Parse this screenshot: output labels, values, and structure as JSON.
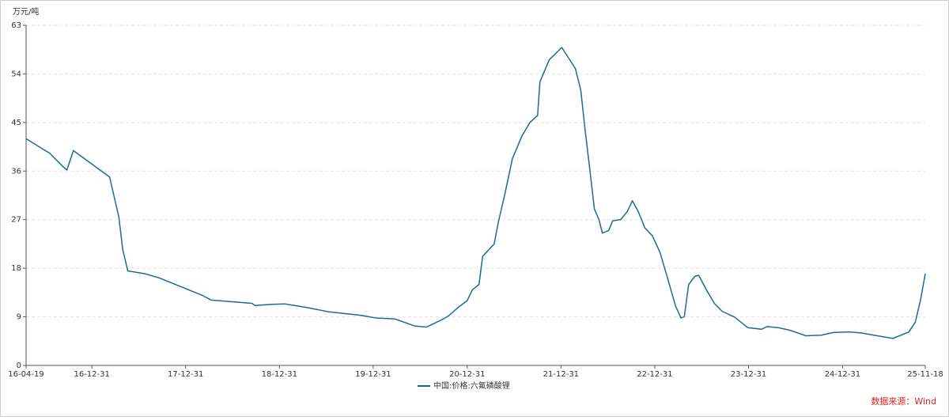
{
  "chart_data": {
    "type": "line",
    "y_label": "万元/吨",
    "source": "数据来源：Wind",
    "x": [
      "16-04-19",
      "16-06-05",
      "16-07-20",
      "16-09-10",
      "16-09-25",
      "16-10-20",
      "17-03-10",
      "17-04-15",
      "17-04-30",
      "17-05-20",
      "17-07-25",
      "17-09-20",
      "18-03-05",
      "18-04-10",
      "18-09-15",
      "18-09-28",
      "18-11-25",
      "19-01-20",
      "19-04-20",
      "19-07-15",
      "19-11-10",
      "20-01-10",
      "20-03-25",
      "20-06-10",
      "20-07-25",
      "20-08-25",
      "20-09-25",
      "20-10-20",
      "20-11-30",
      "20-12-31",
      "21-01-20",
      "21-02-15",
      "21-03-01",
      "21-04-15",
      "21-05-01",
      "21-05-25",
      "21-06-25",
      "21-08-01",
      "21-09-01",
      "21-10-01",
      "21-10-10",
      "21-11-15",
      "22-01-03",
      "22-02-25",
      "22-03-18",
      "22-04-03",
      "22-04-18",
      "22-05-10",
      "22-05-28",
      "22-06-10",
      "22-07-05",
      "22-07-20",
      "22-08-20",
      "22-09-15",
      "22-10-05",
      "22-10-28",
      "22-11-22",
      "22-12-22",
      "23-01-20",
      "23-02-20",
      "23-03-22",
      "23-04-12",
      "23-04-25",
      "23-05-12",
      "23-06-05",
      "23-06-20",
      "23-07-20",
      "23-08-20",
      "23-09-20",
      "23-11-05",
      "23-12-28",
      "24-02-20",
      "24-03-12",
      "24-04-25",
      "24-06-10",
      "24-08-10",
      "24-10-10",
      "24-11-25",
      "25-01-25",
      "25-03-15",
      "25-05-15",
      "25-07-15",
      "25-08-15",
      "25-09-15",
      "25-10-10",
      "25-10-30",
      "25-11-18"
    ],
    "series": [
      {
        "name": "中国:价格:六氟磷酸锂",
        "color": "#1a6b96",
        "values": [
          42.0,
          40.6,
          39.3,
          36.8,
          36.2,
          39.8,
          34.9,
          27.5,
          21.5,
          17.5,
          17.0,
          16.2,
          13.0,
          12.1,
          11.5,
          11.1,
          11.3,
          11.4,
          10.7,
          9.9,
          9.3,
          8.8,
          8.6,
          7.3,
          7.1,
          7.8,
          8.5,
          9.2,
          10.9,
          12.0,
          14.0,
          15.0,
          20.2,
          22.5,
          26.5,
          31.4,
          38.3,
          42.5,
          45.0,
          46.3,
          52.5,
          56.6,
          58.9,
          55.0,
          51.0,
          44.0,
          38.0,
          29.0,
          27.0,
          24.5,
          25.0,
          26.8,
          27.0,
          28.5,
          30.5,
          28.5,
          25.5,
          24.0,
          21.0,
          16.0,
          11.0,
          8.8,
          9.0,
          15.0,
          16.5,
          16.7,
          14.0,
          11.5,
          10.0,
          9.0,
          7.0,
          6.7,
          7.2,
          7.0,
          6.5,
          5.5,
          5.6,
          6.1,
          6.2,
          6.0,
          5.5,
          5.0,
          5.6,
          6.2,
          8.0,
          12.0,
          17.0
        ]
      }
    ],
    "xlim": [
      "16-04-19",
      "25-11-18"
    ],
    "xticks": [
      "16-04-19",
      "16-12-31",
      "17-12-31",
      "18-12-31",
      "19-12-31",
      "20-12-31",
      "21-12-31",
      "22-12-31",
      "23-12-31",
      "24-12-31",
      "25-11-18"
    ],
    "ylim": [
      0,
      63
    ],
    "yticks": [
      0,
      9,
      18,
      27,
      36,
      45,
      54,
      63
    ],
    "grid": true,
    "legend": "bottom"
  }
}
